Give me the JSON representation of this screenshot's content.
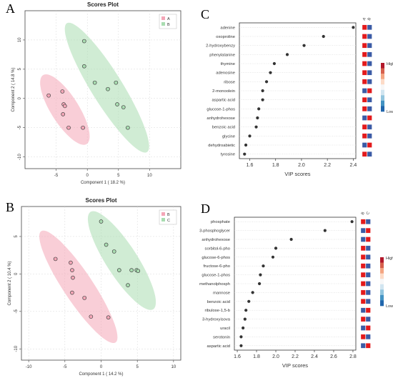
{
  "panel_letters": {
    "A": "A",
    "B": "B",
    "C": "C",
    "D": "D"
  },
  "chart_data": [
    {
      "type": "scatter",
      "title": "Scores Plot",
      "xlabel": "Component 1 ( 18.2 %)",
      "ylabel": "Component 2 ( 14.8 %)",
      "xlim": [
        -10,
        15
      ],
      "ylim": [
        -12,
        15
      ],
      "xticks": [
        -5,
        0,
        5,
        10
      ],
      "yticks": [
        -10,
        -5,
        0,
        5,
        10
      ],
      "legend_position": "top-right",
      "series": [
        {
          "name": "A",
          "color": "#F4A6B7",
          "x": [
            -6.2,
            -4.0,
            -3.8,
            -3.6,
            -3.9,
            -3.0,
            -0.7
          ],
          "y": [
            0.5,
            1.2,
            -1.0,
            -1.3,
            -2.7,
            -5.0,
            -5.0
          ]
        },
        {
          "name": "B",
          "color": "#A9DDB1",
          "x": [
            -0.5,
            -0.5,
            1.2,
            3.3,
            4.6,
            4.8,
            5.8,
            6.5
          ],
          "y": [
            9.8,
            5.5,
            2.7,
            1.6,
            2.7,
            -1.0,
            -1.5,
            -5.0
          ]
        }
      ]
    },
    {
      "type": "bar",
      "xlabel": "VIP scores",
      "xlim": [
        1.52,
        2.42
      ],
      "xticks": [
        1.6,
        1.8,
        2.0,
        2.2,
        2.4
      ],
      "categories": [
        "adenine",
        "oxoproline",
        "2-hydroxybenzy",
        "phenylalanine",
        "thymine",
        "adenosine",
        "ribose",
        "2-monoolein",
        "aspartic acid",
        "glucose-1-phos",
        "anhydrohexose",
        "benzoic acid",
        "glycine",
        "dehydroabietic",
        "tyrosine"
      ],
      "values": [
        2.4,
        2.17,
        2.02,
        1.89,
        1.79,
        1.76,
        1.73,
        1.7,
        1.7,
        1.67,
        1.66,
        1.65,
        1.6,
        1.57,
        1.56
      ],
      "heat_columns": [
        "A",
        "B"
      ],
      "heat_cells": [
        [
          "#E31A1C",
          "#3B5BA5"
        ],
        [
          "#E31A1C",
          "#3B5BA5"
        ],
        [
          "#E31A1C",
          "#3B5BA5"
        ],
        [
          "#E31A1C",
          "#3B5BA5"
        ],
        [
          "#E31A1C",
          "#3B5BA5"
        ],
        [
          "#E31A1C",
          "#3B5BA5"
        ],
        [
          "#E31A1C",
          "#3B5BA5"
        ],
        [
          "#3B5BA5",
          "#E31A1C"
        ],
        [
          "#E31A1C",
          "#3B5BA5"
        ],
        [
          "#E31A1C",
          "#3B5BA5"
        ],
        [
          "#3B5BA5",
          "#E31A1C"
        ],
        [
          "#E31A1C",
          "#3B5BA5"
        ],
        [
          "#E31A1C",
          "#3B5BA5"
        ],
        [
          "#3B5BA5",
          "#E31A1C"
        ],
        [
          "#E31A1C",
          "#3B5BA5"
        ]
      ],
      "colorbar": {
        "high": "High",
        "low": "Low"
      }
    },
    {
      "type": "scatter",
      "title": "Scores Plot",
      "xlabel": "Component 1 ( 14.2 %)",
      "ylabel": "Component 2 ( 10.4 %)",
      "xlim": [
        -11,
        11
      ],
      "ylim": [
        -11.5,
        9
      ],
      "xticks": [
        -10,
        -5,
        0,
        5,
        10
      ],
      "yticks": [
        -10,
        -5,
        0,
        5
      ],
      "legend_position": "top-right",
      "series": [
        {
          "name": "B",
          "color": "#F4A6B7",
          "x": [
            -6.3,
            -4.2,
            -4.0,
            -3.9,
            -4.0,
            -2.3,
            -1.4,
            1.0
          ],
          "y": [
            2.0,
            1.5,
            0.5,
            -0.5,
            -2.5,
            -3.2,
            -5.7,
            -5.8
          ]
        },
        {
          "name": "C",
          "color": "#A9DDB1",
          "x": [
            0.0,
            0.7,
            1.8,
            2.5,
            3.7,
            4.2,
            4.9,
            5.1
          ],
          "y": [
            7.0,
            3.9,
            3.0,
            0.5,
            -1.5,
            0.5,
            0.5,
            0.4
          ]
        }
      ]
    },
    {
      "type": "bar",
      "xlabel": "VIP scores",
      "xlim": [
        1.57,
        2.83
      ],
      "xticks": [
        1.6,
        1.8,
        2.0,
        2.2,
        2.4,
        2.6,
        2.8
      ],
      "categories": [
        "phosphate",
        "3-phosphoglycer",
        "anhydrohexose",
        "sorbitol-6-pho",
        "glucose-6-phos",
        "fructose-6-pho",
        "glucose-1-phos",
        "methanolphosph",
        "mannose",
        "benzoic acid",
        "ribulose-1,5-b",
        "3-hydroxyisova",
        "uracil",
        "serotonin",
        "aspartic acid"
      ],
      "values": [
        2.79,
        2.51,
        2.16,
        2.0,
        1.97,
        1.87,
        1.84,
        1.83,
        1.76,
        1.72,
        1.69,
        1.68,
        1.66,
        1.64,
        1.64
      ],
      "heat_columns": [
        "B",
        "C"
      ],
      "heat_cells": [
        [
          "#E31A1C",
          "#3B5BA5"
        ],
        [
          "#3B5BA5",
          "#E31A1C"
        ],
        [
          "#3B5BA5",
          "#E31A1C"
        ],
        [
          "#E31A1C",
          "#3B5BA5"
        ],
        [
          "#E31A1C",
          "#3B5BA5"
        ],
        [
          "#E31A1C",
          "#3B5BA5"
        ],
        [
          "#E31A1C",
          "#3B5BA5"
        ],
        [
          "#E31A1C",
          "#3B5BA5"
        ],
        [
          "#E31A1C",
          "#3B5BA5"
        ],
        [
          "#E31A1C",
          "#3B5BA5"
        ],
        [
          "#3B5BA5",
          "#E31A1C"
        ],
        [
          "#E31A1C",
          "#3B5BA5"
        ],
        [
          "#3B5BA5",
          "#E31A1C"
        ],
        [
          "#E31A1C",
          "#3B5BA5"
        ],
        [
          "#3B5BA5",
          "#E31A1C"
        ]
      ],
      "colorbar": {
        "high": "High",
        "low": "Low"
      }
    }
  ]
}
